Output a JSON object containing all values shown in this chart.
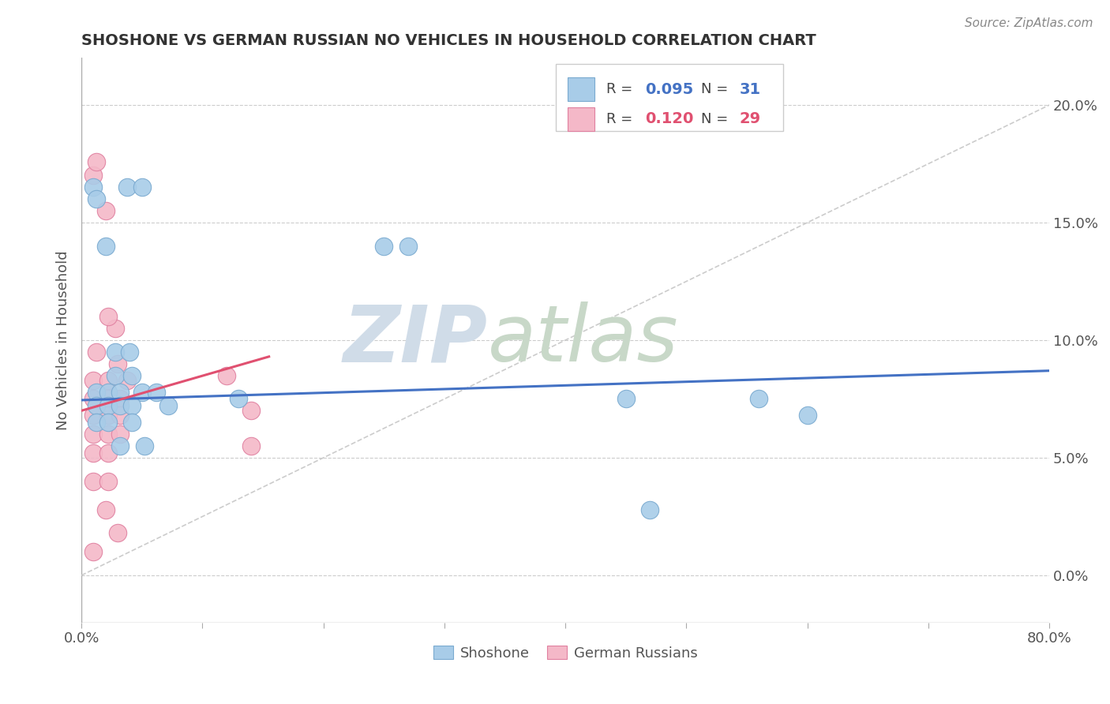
{
  "title": "SHOSHONE VS GERMAN RUSSIAN NO VEHICLES IN HOUSEHOLD CORRELATION CHART",
  "source": "Source: ZipAtlas.com",
  "ylabel": "No Vehicles in Household",
  "xlim": [
    0.0,
    0.8
  ],
  "ylim": [
    -0.02,
    0.22
  ],
  "xticks": [
    0.0,
    0.1,
    0.2,
    0.3,
    0.4,
    0.5,
    0.6,
    0.7,
    0.8
  ],
  "xticklabels": [
    "0.0%",
    "",
    "",
    "",
    "",
    "",
    "",
    "",
    "80.0%"
  ],
  "yticks_right": [
    0.0,
    0.05,
    0.1,
    0.15,
    0.2
  ],
  "yticklabels_right": [
    "0.0%",
    "5.0%",
    "10.0%",
    "15.0%",
    "20.0%"
  ],
  "watermark_zip": "ZIP",
  "watermark_atlas": "atlas",
  "shoshone_color": "#a8cce8",
  "shoshone_edge": "#7aaad0",
  "german_color": "#f4b8c8",
  "german_edge": "#e080a0",
  "shoshone_scatter": [
    [
      0.01,
      0.165
    ],
    [
      0.012,
      0.16
    ],
    [
      0.038,
      0.165
    ],
    [
      0.05,
      0.165
    ],
    [
      0.02,
      0.14
    ],
    [
      0.028,
      0.095
    ],
    [
      0.04,
      0.095
    ],
    [
      0.25,
      0.14
    ],
    [
      0.27,
      0.14
    ],
    [
      0.028,
      0.085
    ],
    [
      0.042,
      0.085
    ],
    [
      0.012,
      0.078
    ],
    [
      0.022,
      0.078
    ],
    [
      0.032,
      0.078
    ],
    [
      0.05,
      0.078
    ],
    [
      0.062,
      0.078
    ],
    [
      0.012,
      0.072
    ],
    [
      0.022,
      0.072
    ],
    [
      0.032,
      0.072
    ],
    [
      0.042,
      0.072
    ],
    [
      0.072,
      0.072
    ],
    [
      0.012,
      0.065
    ],
    [
      0.022,
      0.065
    ],
    [
      0.042,
      0.065
    ],
    [
      0.032,
      0.055
    ],
    [
      0.052,
      0.055
    ],
    [
      0.13,
      0.075
    ],
    [
      0.45,
      0.075
    ],
    [
      0.56,
      0.075
    ],
    [
      0.47,
      0.028
    ],
    [
      0.6,
      0.068
    ]
  ],
  "german_scatter": [
    [
      0.01,
      0.17
    ],
    [
      0.012,
      0.176
    ],
    [
      0.02,
      0.155
    ],
    [
      0.028,
      0.105
    ],
    [
      0.03,
      0.09
    ],
    [
      0.01,
      0.083
    ],
    [
      0.022,
      0.083
    ],
    [
      0.038,
      0.083
    ],
    [
      0.01,
      0.075
    ],
    [
      0.022,
      0.075
    ],
    [
      0.032,
      0.075
    ],
    [
      0.01,
      0.068
    ],
    [
      0.022,
      0.068
    ],
    [
      0.032,
      0.068
    ],
    [
      0.01,
      0.06
    ],
    [
      0.022,
      0.06
    ],
    [
      0.032,
      0.06
    ],
    [
      0.01,
      0.052
    ],
    [
      0.022,
      0.052
    ],
    [
      0.01,
      0.04
    ],
    [
      0.022,
      0.04
    ],
    [
      0.02,
      0.028
    ],
    [
      0.03,
      0.018
    ],
    [
      0.01,
      0.01
    ],
    [
      0.14,
      0.07
    ],
    [
      0.14,
      0.055
    ],
    [
      0.012,
      0.095
    ],
    [
      0.022,
      0.11
    ],
    [
      0.12,
      0.085
    ]
  ],
  "shoshone_line": {
    "x0": 0.0,
    "y0": 0.0745,
    "x1": 0.8,
    "y1": 0.087
  },
  "german_line": {
    "x0": 0.0,
    "y0": 0.07,
    "x1": 0.155,
    "y1": 0.093
  },
  "diagonal_line": {
    "x0": 0.0,
    "y0": 0.0,
    "x1": 0.8,
    "y1": 0.2
  },
  "background_color": "#ffffff",
  "grid_color": "#cccccc",
  "title_color": "#333333",
  "r_color_blue": "#4472c4",
  "r_color_pink": "#e05070",
  "legend_r1": "0.095",
  "legend_n1": "31",
  "legend_r2": "0.120",
  "legend_n2": "29"
}
